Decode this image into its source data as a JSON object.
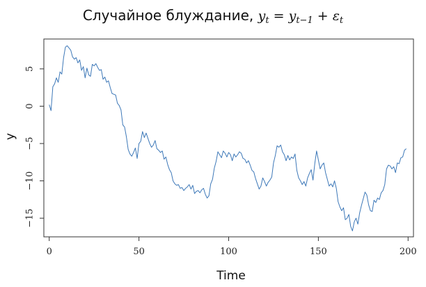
{
  "chart_data": {
    "type": "line",
    "title_text": "Случайное блуждание, ",
    "title_formula": "y_t = y_{t−1} + ε_t",
    "title_formula_parts": {
      "y1": "y",
      "s1": "t",
      "eq": " = ",
      "y2": "y",
      "s2": "t−1",
      "plus": " + ",
      "eps": "ε",
      "s3": "t"
    },
    "xlabel": "Time",
    "ylabel": "y",
    "xlim": [
      -3,
      203
    ],
    "ylim": [
      -17.5,
      9
    ],
    "xticks": [
      0,
      50,
      100,
      150,
      200
    ],
    "yticks": [
      -15,
      -10,
      -5,
      0,
      5
    ],
    "grid": false,
    "series": [
      {
        "color": "#3d78b8",
        "x_start": 0,
        "x_step": 1,
        "values": [
          0.2,
          -0.6,
          2.6,
          3.0,
          3.8,
          3.2,
          4.6,
          4.3,
          6.5,
          7.9,
          8.1,
          7.8,
          7.5,
          6.6,
          6.3,
          6.5,
          5.8,
          6.2,
          4.8,
          5.3,
          3.8,
          5.1,
          4.2,
          4.0,
          5.6,
          5.4,
          5.7,
          5.2,
          4.8,
          4.9,
          3.6,
          3.9,
          3.2,
          3.4,
          2.5,
          1.7,
          1.6,
          1.5,
          0.4,
          0.1,
          -0.5,
          -2.5,
          -2.8,
          -4.1,
          -5.8,
          -6.4,
          -6.7,
          -6.2,
          -5.6,
          -7.0,
          -5.0,
          -4.7,
          -3.4,
          -4.2,
          -3.6,
          -4.3,
          -5.0,
          -5.5,
          -5.2,
          -4.6,
          -5.7,
          -5.9,
          -6.2,
          -6.0,
          -7.1,
          -6.8,
          -7.8,
          -8.5,
          -8.9,
          -10.0,
          -10.4,
          -10.6,
          -10.5,
          -11.0,
          -10.9,
          -11.3,
          -11.0,
          -10.8,
          -10.5,
          -11.1,
          -10.6,
          -11.7,
          -11.4,
          -11.3,
          -11.6,
          -11.2,
          -11.0,
          -11.8,
          -12.3,
          -12.0,
          -10.4,
          -9.8,
          -8.3,
          -7.4,
          -6.1,
          -6.5,
          -6.9,
          -6.0,
          -6.3,
          -6.8,
          -6.2,
          -6.5,
          -7.3,
          -6.4,
          -6.8,
          -6.5,
          -6.1,
          -6.3,
          -7.0,
          -7.1,
          -7.6,
          -7.3,
          -7.9,
          -8.6,
          -8.8,
          -9.7,
          -10.4,
          -11.1,
          -10.7,
          -9.6,
          -10.1,
          -10.7,
          -10.2,
          -9.9,
          -9.5,
          -7.6,
          -6.6,
          -5.3,
          -5.5,
          -5.2,
          -6.1,
          -6.5,
          -7.3,
          -6.6,
          -7.2,
          -6.8,
          -7.0,
          -6.4,
          -8.6,
          -9.6,
          -10.0,
          -10.5,
          -10.1,
          -10.7,
          -9.6,
          -9.0,
          -8.5,
          -9.9,
          -7.7,
          -6.0,
          -7.2,
          -8.4,
          -7.9,
          -7.6,
          -8.9,
          -9.8,
          -10.7,
          -10.4,
          -10.8,
          -10.0,
          -11.0,
          -12.8,
          -13.5,
          -14.0,
          -13.6,
          -15.2,
          -15.0,
          -14.5,
          -16.1,
          -16.7,
          -15.5,
          -15.0,
          -15.8,
          -14.3,
          -13.3,
          -12.4,
          -11.5,
          -11.9,
          -13.2,
          -14.0,
          -14.1,
          -12.6,
          -12.9,
          -12.3,
          -12.5,
          -11.6,
          -11.3,
          -10.5,
          -8.4,
          -7.9,
          -8.0,
          -8.4,
          -8.1,
          -8.9,
          -7.6,
          -7.7,
          -6.9,
          -6.8,
          -5.9,
          -5.7
        ]
      }
    ]
  }
}
